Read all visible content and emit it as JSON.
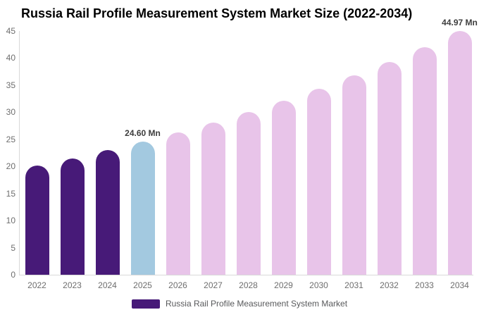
{
  "chart": {
    "title": "Russia Rail Profile Measurement System Market Size (2022-2034)"
  },
  "chart_data": {
    "type": "bar",
    "title": "Russia Rail Profile Measurement System Market Size (2022-2034)",
    "categories": [
      "2022",
      "2023",
      "2024",
      "2025",
      "2026",
      "2027",
      "2028",
      "2029",
      "2030",
      "2031",
      "2032",
      "2033",
      "2034"
    ],
    "values": [
      20.12,
      21.52,
      23.01,
      24.6,
      26.3,
      28.13,
      30.08,
      32.16,
      34.38,
      36.77,
      39.31,
      42.03,
      44.97
    ],
    "unit": "Mn",
    "annotations": [
      {
        "category": "2025",
        "text": "24.60 Mn"
      },
      {
        "category": "2034",
        "text": "44.97 Mn"
      }
    ],
    "colors": {
      "historical": "#471a78",
      "current": "#a3c9e0",
      "forecast": "#e8c4e9"
    },
    "color_roles": [
      "historical",
      "historical",
      "historical",
      "current",
      "forecast",
      "forecast",
      "forecast",
      "forecast",
      "forecast",
      "forecast",
      "forecast",
      "forecast",
      "forecast"
    ],
    "xlabel": "",
    "ylabel": "",
    "ylim": [
      0,
      45
    ],
    "ytick_step": 5,
    "grid": false,
    "legend": {
      "position": "bottom",
      "entries": [
        {
          "label": "Russia Rail Profile Measurement System Market",
          "color": "#471a78"
        }
      ]
    }
  }
}
